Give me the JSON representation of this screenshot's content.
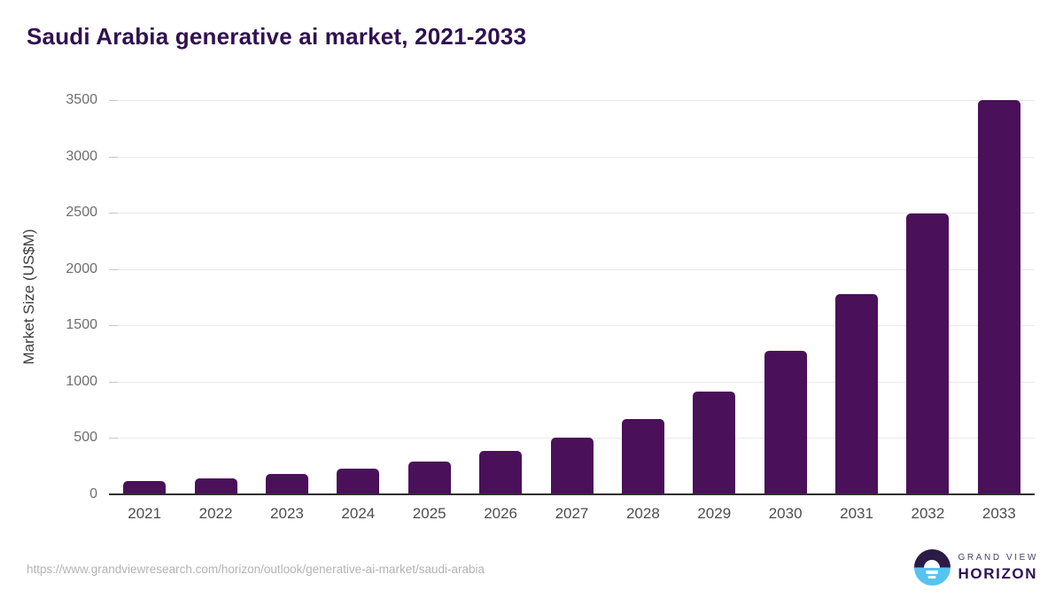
{
  "title": "Saudi Arabia generative ai market, 2021-2033",
  "chart_data": {
    "type": "bar",
    "title": "Saudi Arabia generative ai market, 2021-2033",
    "categories": [
      "2021",
      "2022",
      "2023",
      "2024",
      "2025",
      "2026",
      "2027",
      "2028",
      "2029",
      "2030",
      "2031",
      "2032",
      "2033"
    ],
    "values": [
      115,
      140,
      180,
      230,
      290,
      385,
      505,
      670,
      910,
      1275,
      1775,
      2490,
      3500
    ],
    "xlabel": "",
    "ylabel": "Market Size (US$M)",
    "ylim": [
      0,
      3500
    ],
    "yticks": [
      0,
      500,
      1000,
      1500,
      2000,
      2500,
      3000,
      3500
    ],
    "grid": true,
    "legend": "none",
    "bar_color": "#4a1059"
  },
  "footer": {
    "source_url": "https://www.grandviewresearch.com/horizon/outlook/generative-ai-market/saudi-arabia",
    "logo_line1": "GRAND VIEW",
    "logo_line2": "HORIZON"
  },
  "colors": {
    "title": "#2f1150",
    "bar": "#4a1059",
    "gridline": "#e9e9e9",
    "axis_line": "#2e2e2e",
    "tick_label": "#6e6e6e",
    "x_label": "#4d4d4d",
    "source_text": "#b3b3b3",
    "logo_purple": "#2b1b47",
    "logo_blue": "#56c3f0"
  }
}
